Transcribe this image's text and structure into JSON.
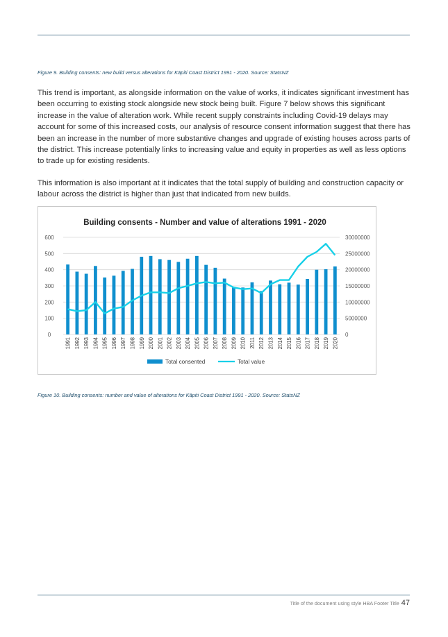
{
  "figure9_caption": "Figure 9. Building consents: new build versus alterations for Kāpiti Coast District 1991 - 2020. Source: StatsNZ",
  "paragraph1": "This trend is important, as alongside information on the value of works, it indicates significant investment has been occurring to existing stock alongside new stock being built. Figure 7 below shows this significant increase in the value of alteration work. While recent supply constraints including Covid-19 delays may account for some of this increased costs, our analysis of resource consent information suggest that there has been an increase in the number of more substantive changes and upgrade of existing houses across parts of the district. This increase potentially links to increasing value and equity in properties as well as less options to trade up for existing residents.",
  "paragraph2": "This information is also important at it indicates that the total supply of building and construction capacity or labour across the district is higher than just that indicated from new builds.",
  "figure10_caption": "Figure 10. Building consents: number and value of alterations for Kāpiti Coast District 1991 - 2020. Source: StatsNZ",
  "footer": {
    "title": "Title of the document using style HBA Footer Title",
    "page": "47"
  },
  "colors": {
    "bar": "#0f8fce",
    "line": "#18d0e8",
    "caption": "#1f4e6b",
    "rule": "#5b7f95"
  },
  "chart_data": {
    "type": "bar",
    "title": "Building consents - Number and value of alterations 1991 - 2020",
    "categories": [
      "1991",
      "1992",
      "1993",
      "1994",
      "1995",
      "1996",
      "1997",
      "1998",
      "1999",
      "2000",
      "2001",
      "2002",
      "2003",
      "2004",
      "2005",
      "2006",
      "2007",
      "2008",
      "2009",
      "2010",
      "2011",
      "2012",
      "2013",
      "2014",
      "2015",
      "2016",
      "2017",
      "2018",
      "2019",
      "2020"
    ],
    "series": [
      {
        "name": "Total consented",
        "type": "bar",
        "axis": "left",
        "values": [
          432,
          388,
          375,
          423,
          352,
          363,
          393,
          405,
          480,
          485,
          465,
          460,
          448,
          468,
          485,
          430,
          412,
          345,
          292,
          290,
          322,
          268,
          333,
          310,
          320,
          308,
          343,
          400,
          403,
          420
        ]
      },
      {
        "name": "Total value",
        "type": "line",
        "axis": "right",
        "values": [
          7800000,
          7200000,
          7500000,
          10000000,
          6500000,
          8000000,
          8500000,
          10500000,
          12000000,
          13000000,
          13000000,
          12800000,
          14300000,
          15000000,
          15800000,
          16200000,
          15800000,
          16000000,
          14500000,
          14000000,
          14200000,
          12800000,
          15500000,
          16800000,
          16800000,
          21000000,
          24000000,
          25500000,
          28000000,
          24500000
        ]
      }
    ],
    "ylim_left": [
      0,
      600
    ],
    "yticks_left": [
      "600",
      "500",
      "400",
      "300",
      "200",
      "100",
      "0"
    ],
    "ylim_right": [
      0,
      30000000
    ],
    "yticks_right": [
      "30000000",
      "25000000",
      "20000000",
      "15000000",
      "10000000",
      "5000000",
      "0"
    ],
    "grid": true,
    "legend_position": "bottom"
  }
}
